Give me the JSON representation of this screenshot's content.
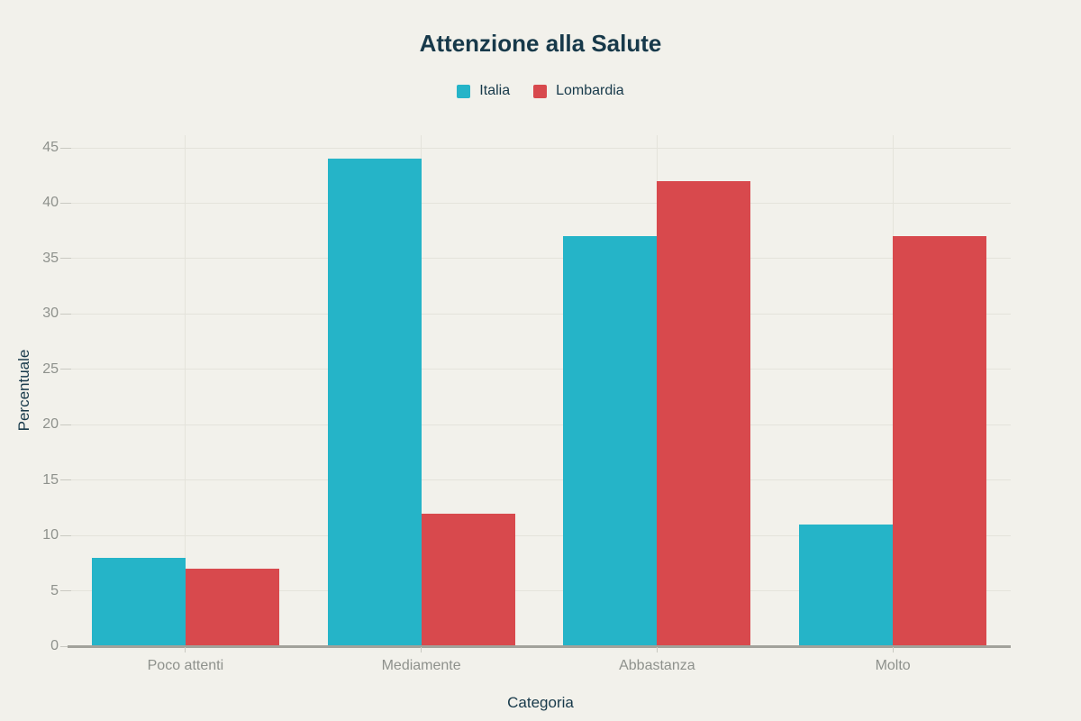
{
  "title": "Attenzione alla Salute",
  "colors": {
    "background": "#f2f1eb",
    "italia": "#25b4c8",
    "lombardia": "#d8494d",
    "title_text": "#17394a",
    "axis_text": "#8e918c",
    "gridline": "#e4e3db",
    "axis_line": "#a2a29b"
  },
  "legend": {
    "items": [
      {
        "label": "Italia",
        "color": "#25b4c8"
      },
      {
        "label": "Lombardia",
        "color": "#d8494d"
      }
    ]
  },
  "chart_data": {
    "type": "bar",
    "title": "Attenzione alla Salute",
    "categories": [
      "Poco attenti",
      "Mediamente",
      "Abbastanza",
      "Molto"
    ],
    "series": [
      {
        "name": "Italia",
        "color": "#25b4c8",
        "values": [
          8,
          44,
          37,
          11
        ]
      },
      {
        "name": "Lombardia",
        "color": "#d8494d",
        "values": [
          7,
          12,
          42,
          37
        ]
      }
    ],
    "xlabel": "Categoria",
    "ylabel": "Percentuale",
    "ylim": [
      0,
      45
    ],
    "ytick_step": 5,
    "grid": true,
    "legend_position": "top"
  }
}
